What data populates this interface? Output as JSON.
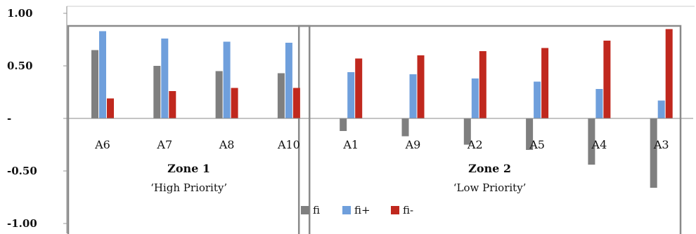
{
  "chart_data": {
    "type": "bar",
    "categories": [
      "A6",
      "A7",
      "A8",
      "A10",
      "A1",
      "A9",
      "A2",
      "A5",
      "A4",
      "A3"
    ],
    "series": [
      {
        "name": "fi",
        "color": "#7f7f7f",
        "values": [
          0.65,
          0.5,
          0.45,
          0.43,
          -0.12,
          -0.17,
          -0.25,
          -0.3,
          -0.44,
          -0.66
        ]
      },
      {
        "name": "fi+",
        "color": "#6f9fdc",
        "values": [
          0.83,
          0.76,
          0.73,
          0.72,
          0.44,
          0.42,
          0.38,
          0.35,
          0.28,
          0.17
        ]
      },
      {
        "name": "fi-",
        "color": "#c0281e",
        "values": [
          0.19,
          0.26,
          0.29,
          0.29,
          0.57,
          0.6,
          0.64,
          0.67,
          0.74,
          0.85
        ]
      }
    ],
    "ylim": [
      -1.0,
      1.0
    ],
    "yticks": [
      {
        "value": 1.0,
        "label": "1.00"
      },
      {
        "value": 0.5,
        "label": "0.50"
      },
      {
        "value": 0.0,
        "label": "-"
      },
      {
        "value": -0.5,
        "label": "-0.50"
      },
      {
        "value": -1.0,
        "label": "-1.00"
      }
    ],
    "grid": false,
    "legend_position": "bottom",
    "annotations": [
      {
        "title": "Zone 1",
        "subtitle": "‘High Priority’",
        "categories": [
          "A6",
          "A7",
          "A8",
          "A10"
        ]
      },
      {
        "title": "Zone 2",
        "subtitle": "‘Low Priority’",
        "categories": [
          "A1",
          "A9",
          "A2",
          "A5",
          "A4",
          "A3"
        ]
      }
    ]
  }
}
